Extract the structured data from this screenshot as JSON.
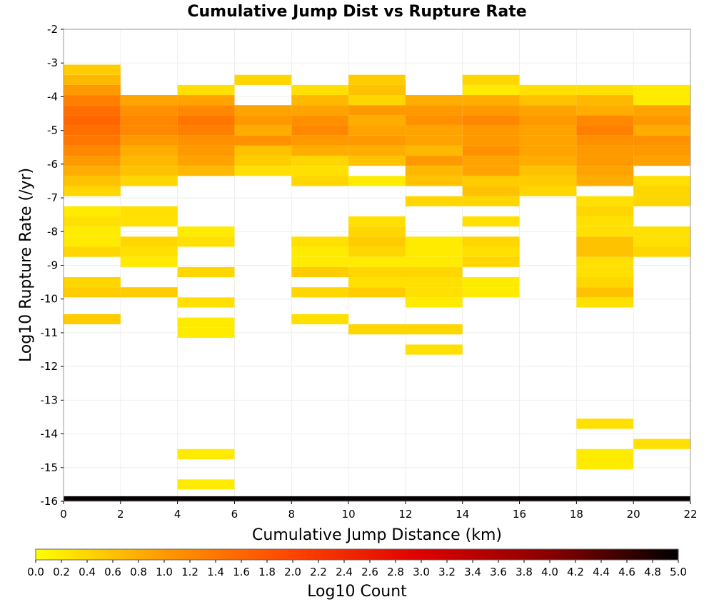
{
  "chart_data": {
    "type": "heatmap",
    "title": "Cumulative Jump Dist vs Rupture Rate",
    "xlabel": "Cumulative Jump Distance (km)",
    "ylabel": "Log10 Rupture Rate (/yr)",
    "xlim": [
      0,
      22
    ],
    "ylim": [
      -16,
      -2
    ],
    "x_bin_width": 2,
    "y_bin_height": 0.3,
    "xticks": [
      0,
      2,
      4,
      6,
      8,
      10,
      12,
      14,
      16,
      18,
      20,
      22
    ],
    "yticks": [
      -2,
      -3,
      -4,
      -5,
      -6,
      -7,
      -8,
      -9,
      -10,
      -11,
      -12,
      -13,
      -14,
      -15,
      -16
    ],
    "grid": true,
    "colorbar": {
      "label": "Log10 Count",
      "min": 0.0,
      "max": 5.0,
      "ticks": [
        "0.0",
        "0.2",
        "0.4",
        "0.6",
        "0.8",
        "1.0",
        "1.2",
        "1.4",
        "1.6",
        "1.8",
        "2.0",
        "2.2",
        "2.4",
        "2.6",
        "2.8",
        "3.0",
        "3.2",
        "3.4",
        "3.6",
        "3.8",
        "4.0",
        "4.2",
        "4.4",
        "4.6",
        "4.8",
        "5.0"
      ],
      "colors": [
        "#ffff00",
        "#ff9900",
        "#ff4400",
        "#dd0000",
        "#880000",
        "#000000"
      ]
    },
    "columns": [
      {
        "x_start": 0,
        "cells": [
          [
            -3.2,
            0.5
          ],
          [
            -3.5,
            0.7
          ],
          [
            -3.8,
            1.0
          ],
          [
            -4.1,
            1.3
          ],
          [
            -4.4,
            1.5
          ],
          [
            -4.7,
            1.6
          ],
          [
            -5.0,
            1.5
          ],
          [
            -5.3,
            1.4
          ],
          [
            -5.6,
            1.2
          ],
          [
            -5.9,
            1.0
          ],
          [
            -6.2,
            0.8
          ],
          [
            -6.5,
            0.6
          ],
          [
            -6.8,
            0.4
          ],
          [
            -7.4,
            0.2
          ],
          [
            -7.7,
            0.3
          ],
          [
            -8.0,
            0.2
          ],
          [
            -8.3,
            0.2
          ],
          [
            -8.6,
            0.4
          ],
          [
            -9.5,
            0.4
          ],
          [
            -9.8,
            0.5
          ],
          [
            -10.6,
            0.5
          ]
        ]
      },
      {
        "x_start": 2,
        "cells": [
          [
            -4.1,
            0.9
          ],
          [
            -4.4,
            1.1
          ],
          [
            -4.7,
            1.2
          ],
          [
            -5.0,
            1.2
          ],
          [
            -5.3,
            1.0
          ],
          [
            -5.6,
            0.8
          ],
          [
            -5.9,
            0.7
          ],
          [
            -6.2,
            0.6
          ],
          [
            -6.5,
            0.4
          ],
          [
            -7.4,
            0.3
          ],
          [
            -7.7,
            0.3
          ],
          [
            -8.3,
            0.4
          ],
          [
            -8.6,
            0.3
          ],
          [
            -8.9,
            0.2
          ],
          [
            -9.8,
            0.5
          ]
        ]
      },
      {
        "x_start": 4,
        "cells": [
          [
            -3.8,
            0.3
          ],
          [
            -4.1,
            0.9
          ],
          [
            -4.4,
            1.2
          ],
          [
            -4.7,
            1.4
          ],
          [
            -5.0,
            1.3
          ],
          [
            -5.3,
            1.1
          ],
          [
            -5.6,
            1.0
          ],
          [
            -5.9,
            0.9
          ],
          [
            -6.2,
            0.7
          ],
          [
            -8.0,
            0.2
          ],
          [
            -8.3,
            0.3
          ],
          [
            -9.2,
            0.4
          ],
          [
            -10.1,
            0.3
          ],
          [
            -10.7,
            0.2
          ],
          [
            -11.0,
            0.2
          ],
          [
            -14.6,
            0.2
          ],
          [
            -15.5,
            0.2
          ]
        ]
      },
      {
        "x_start": 6,
        "cells": [
          [
            -3.5,
            0.4
          ],
          [
            -4.4,
            0.9
          ],
          [
            -4.7,
            1.0
          ],
          [
            -5.0,
            0.8
          ],
          [
            -5.3,
            1.1
          ],
          [
            -5.6,
            0.6
          ],
          [
            -5.9,
            0.5
          ],
          [
            -6.2,
            0.3
          ]
        ]
      },
      {
        "x_start": 8,
        "cells": [
          [
            -3.8,
            0.3
          ],
          [
            -4.1,
            0.7
          ],
          [
            -4.4,
            0.9
          ],
          [
            -4.7,
            1.1
          ],
          [
            -5.0,
            1.2
          ],
          [
            -5.3,
            1.0
          ],
          [
            -5.6,
            0.8
          ],
          [
            -5.9,
            0.4
          ],
          [
            -6.2,
            0.3
          ],
          [
            -6.5,
            0.4
          ],
          [
            -8.3,
            0.3
          ],
          [
            -8.6,
            0.2
          ],
          [
            -8.9,
            0.2
          ],
          [
            -9.2,
            0.5
          ],
          [
            -9.8,
            0.4
          ],
          [
            -10.6,
            0.3
          ]
        ]
      },
      {
        "x_start": 10,
        "cells": [
          [
            -3.5,
            0.5
          ],
          [
            -3.8,
            0.6
          ],
          [
            -4.1,
            0.4
          ],
          [
            -4.4,
            1.0
          ],
          [
            -4.7,
            0.8
          ],
          [
            -5.0,
            0.9
          ],
          [
            -5.3,
            1.0
          ],
          [
            -5.6,
            0.8
          ],
          [
            -5.9,
            0.6
          ],
          [
            -6.5,
            0.2
          ],
          [
            -7.7,
            0.3
          ],
          [
            -8.0,
            0.4
          ],
          [
            -8.3,
            0.5
          ],
          [
            -8.6,
            0.4
          ],
          [
            -8.9,
            0.2
          ],
          [
            -9.2,
            0.4
          ],
          [
            -9.5,
            0.3
          ],
          [
            -9.8,
            0.5
          ],
          [
            -10.9,
            0.4
          ]
        ]
      },
      {
        "x_start": 12,
        "cells": [
          [
            -4.1,
            0.8
          ],
          [
            -4.4,
            1.0
          ],
          [
            -4.7,
            1.1
          ],
          [
            -5.0,
            0.9
          ],
          [
            -5.3,
            0.9
          ],
          [
            -5.6,
            0.7
          ],
          [
            -5.9,
            1.0
          ],
          [
            -6.2,
            0.7
          ],
          [
            -6.5,
            0.6
          ],
          [
            -7.1,
            0.4
          ],
          [
            -8.3,
            0.2
          ],
          [
            -8.6,
            0.2
          ],
          [
            -8.9,
            0.2
          ],
          [
            -9.2,
            0.4
          ],
          [
            -9.5,
            0.3
          ],
          [
            -9.8,
            0.3
          ],
          [
            -10.1,
            0.2
          ],
          [
            -10.9,
            0.4
          ],
          [
            -11.5,
            0.3
          ]
        ]
      },
      {
        "x_start": 14,
        "cells": [
          [
            -3.5,
            0.4
          ],
          [
            -3.8,
            0.2
          ],
          [
            -4.1,
            0.8
          ],
          [
            -4.4,
            1.0
          ],
          [
            -4.7,
            1.2
          ],
          [
            -5.0,
            1.0
          ],
          [
            -5.3,
            1.0
          ],
          [
            -5.6,
            1.1
          ],
          [
            -5.9,
            0.9
          ],
          [
            -6.2,
            0.9
          ],
          [
            -6.5,
            0.5
          ],
          [
            -6.8,
            0.6
          ],
          [
            -7.1,
            0.4
          ],
          [
            -7.7,
            0.3
          ],
          [
            -8.3,
            0.4
          ],
          [
            -8.6,
            0.3
          ],
          [
            -8.9,
            0.4
          ],
          [
            -9.5,
            0.2
          ],
          [
            -9.8,
            0.2
          ]
        ]
      },
      {
        "x_start": 16,
        "cells": [
          [
            -3.8,
            0.3
          ],
          [
            -4.1,
            0.6
          ],
          [
            -4.4,
            0.9
          ],
          [
            -4.7,
            1.0
          ],
          [
            -5.0,
            0.9
          ],
          [
            -5.3,
            0.9
          ],
          [
            -5.6,
            0.9
          ],
          [
            -5.9,
            0.8
          ],
          [
            -6.2,
            0.6
          ],
          [
            -6.5,
            0.5
          ],
          [
            -6.8,
            0.4
          ]
        ]
      },
      {
        "x_start": 18,
        "cells": [
          [
            -3.8,
            0.3
          ],
          [
            -4.1,
            0.7
          ],
          [
            -4.4,
            0.8
          ],
          [
            -4.7,
            1.2
          ],
          [
            -5.0,
            1.3
          ],
          [
            -5.3,
            1.1
          ],
          [
            -5.6,
            1.0
          ],
          [
            -5.9,
            1.0
          ],
          [
            -6.2,
            0.9
          ],
          [
            -6.5,
            0.8
          ],
          [
            -7.1,
            0.3
          ],
          [
            -7.4,
            0.4
          ],
          [
            -7.7,
            0.3
          ],
          [
            -8.0,
            0.3
          ],
          [
            -8.3,
            0.6
          ],
          [
            -8.6,
            0.6
          ],
          [
            -8.9,
            0.3
          ],
          [
            -9.2,
            0.3
          ],
          [
            -9.5,
            0.4
          ],
          [
            -9.8,
            0.6
          ],
          [
            -10.1,
            0.3
          ],
          [
            -13.7,
            0.3
          ],
          [
            -14.6,
            0.2
          ],
          [
            -14.9,
            0.2
          ]
        ]
      },
      {
        "x_start": 20,
        "cells": [
          [
            -3.8,
            0.2
          ],
          [
            -4.1,
            0.2
          ],
          [
            -4.4,
            0.9
          ],
          [
            -4.7,
            1.0
          ],
          [
            -5.0,
            0.8
          ],
          [
            -5.3,
            1.1
          ],
          [
            -5.6,
            1.0
          ],
          [
            -5.9,
            0.9
          ],
          [
            -6.5,
            0.3
          ],
          [
            -6.8,
            0.4
          ],
          [
            -7.1,
            0.4
          ],
          [
            -8.0,
            0.3
          ],
          [
            -8.3,
            0.3
          ],
          [
            -8.6,
            0.4
          ],
          [
            -14.3,
            0.3
          ]
        ]
      }
    ],
    "bottom_band": {
      "y_start": -16,
      "y_end": -15.85,
      "value": 4.95
    }
  }
}
